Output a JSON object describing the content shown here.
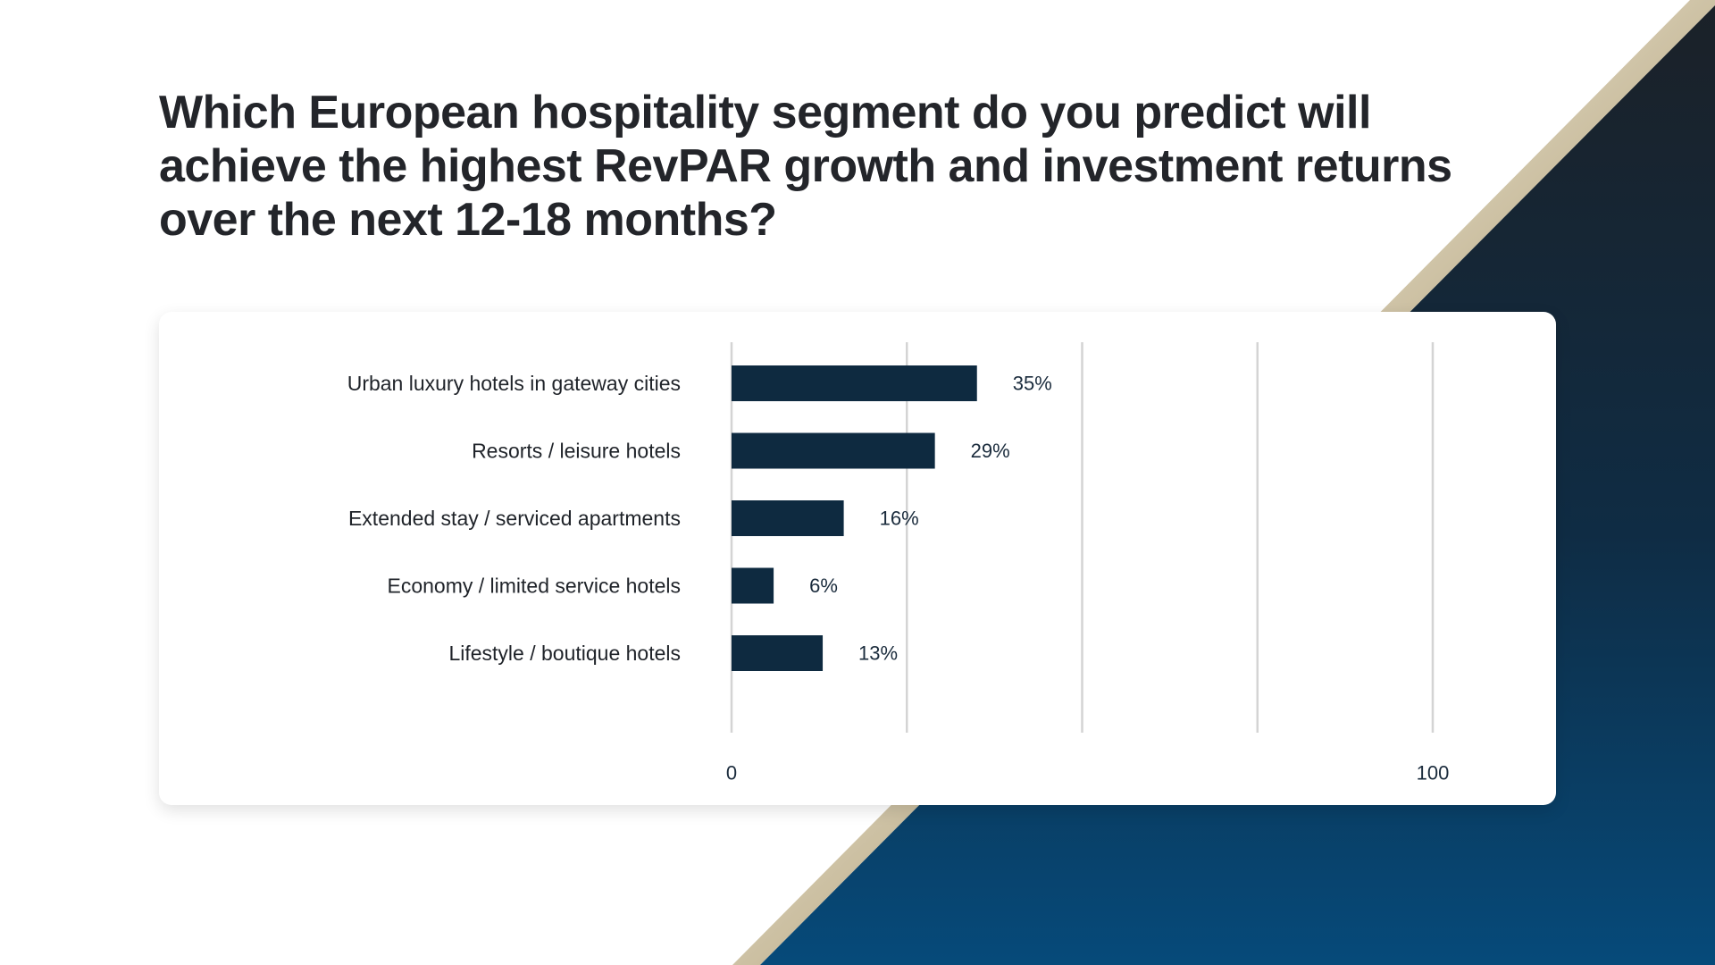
{
  "slide": {
    "title": "Which European hospitality segment do you predict will achieve the highest RevPAR growth and investment returns over the next 12-18 months?"
  },
  "colors": {
    "bar": "#0e2a40",
    "gridline": "#d4d4d4",
    "label_text": "#1f2329",
    "value_text": "#1a2b3c",
    "background_dark_top": "#1b2128",
    "background_dark_bottom": "#064a7a",
    "gold_stripe": "#b9aa86"
  },
  "chart_data": {
    "type": "bar",
    "orientation": "horizontal",
    "title": "Which European hospitality segment do you predict will achieve the highest RevPAR growth and investment returns over the next 12-18 months?",
    "categories": [
      "Urban luxury hotels in gateway cities",
      "Resorts / leisure hotels",
      "Extended stay / serviced apartments",
      "Economy / limited service hotels",
      "Lifestyle / boutique hotels"
    ],
    "values": [
      35,
      29,
      16,
      6,
      13
    ],
    "value_labels": [
      "35%",
      "29%",
      "16%",
      "6%",
      "13%"
    ],
    "xlim": [
      0,
      100
    ],
    "x_ticks": [
      0,
      25,
      50,
      75,
      100
    ],
    "x_tick_labels": [
      "0",
      "100"
    ],
    "xlabel": "",
    "ylabel": "",
    "grid": true,
    "legend": "none"
  }
}
